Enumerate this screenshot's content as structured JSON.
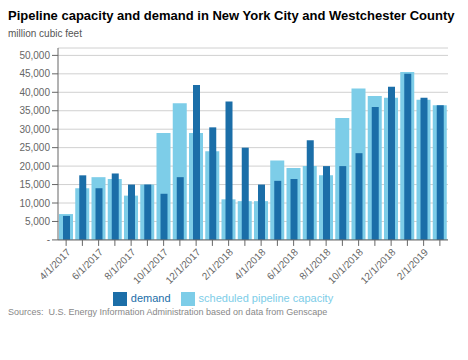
{
  "chart_data": {
    "type": "bar",
    "title": "Pipeline capacity and demand in New York City and Westchester County",
    "ylabel": "million cubic feet",
    "annotations": [
      "Sources:  U.S. Energy Information Administration based on data from Genscape"
    ],
    "categories": [
      "4/1/2017",
      null,
      "6/1/2017",
      null,
      "8/1/2017",
      null,
      "10/1/2017",
      null,
      "12/1/2017",
      null,
      "2/1/2018",
      null,
      "4/1/2018",
      null,
      "6/1/2018",
      null,
      "8/1/2018",
      null,
      "10/1/2018",
      null,
      "12/1/2018",
      null,
      "2/1/2019",
      null
    ],
    "series": [
      {
        "name": "scheduled pipeline capacity",
        "color": "#7DCDE8",
        "values": [
          7000,
          14000,
          17000,
          16500,
          12000,
          15000,
          29000,
          37000,
          29000,
          24000,
          11000,
          10500,
          10500,
          21500,
          19500,
          20000,
          17500,
          33000,
          41000,
          39000,
          38500,
          45500,
          38000,
          36500
        ]
      },
      {
        "name": "demand",
        "color": "#1B6EA8",
        "values": [
          6500,
          17500,
          14000,
          18000,
          15000,
          15000,
          12500,
          17000,
          42000,
          30500,
          37500,
          25000,
          15000,
          16000,
          16500,
          27000,
          20000,
          20000,
          23500,
          36000,
          41500,
          45000,
          38500,
          36500
        ]
      }
    ],
    "ylim": [
      0,
      52000
    ],
    "yticks": [
      {
        "value": 0,
        "label": "-"
      },
      {
        "value": 5000,
        "label": "5,000"
      },
      {
        "value": 10000,
        "label": "10,000"
      },
      {
        "value": 15000,
        "label": "15,000"
      },
      {
        "value": 20000,
        "label": "20,000"
      },
      {
        "value": 25000,
        "label": "25,000"
      },
      {
        "value": 30000,
        "label": "30,000"
      },
      {
        "value": 35000,
        "label": "35,000"
      },
      {
        "value": 40000,
        "label": "40,000"
      },
      {
        "value": 45000,
        "label": "45,000"
      },
      {
        "value": 50000,
        "label": "50,000"
      }
    ],
    "grid": true,
    "legend": "bottom"
  }
}
